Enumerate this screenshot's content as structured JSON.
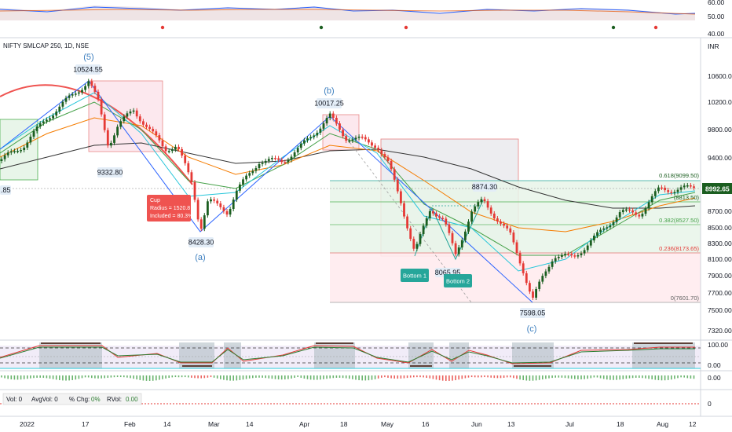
{
  "header": {
    "symbol": "NIFTY SMLCAP 250, 1D, NSE",
    "currency": "INR"
  },
  "colors": {
    "up": "#1b5e20",
    "down": "#e53935",
    "blue": "#2962ff",
    "wave": "#3d7fbf",
    "green_zone": "#c8e6c9",
    "red_zone": "#ffcdd2",
    "gray_box": "#e8e8ec",
    "pink_box": "#fde2e4"
  },
  "top_indicator": {
    "labels": [
      "60.00",
      "50.00",
      "40.00"
    ]
  },
  "chart_data": {
    "type": "candlestick",
    "title": "NIFTY SMLCAP 250, 1D, NSE",
    "ylabel": "INR",
    "y_axis_ticks": [
      "10600.00",
      "10200.00",
      "9800.00",
      "9400.00",
      "8700.00",
      "8500.00",
      "8300.00",
      "8100.00",
      "7900.00",
      "7700.00",
      "7500.00",
      "7320.00"
    ],
    "current_price": "8992.65",
    "x_axis_labels": [
      "2022",
      "17",
      "Feb",
      "14",
      "Mar",
      "14",
      "Apr",
      "18",
      "May",
      "16",
      "Jun",
      "13",
      "Jul",
      "18",
      "Aug",
      "12"
    ],
    "price_labels": {
      "wave5_peak": "10524.55",
      "low_9332": "9332.80",
      "low_8428": "8428.30",
      "wave_b_peak": "10017.25",
      "high_8874": "8874.30",
      "low_8065": "8065.95",
      "low_7598": "7598.05",
      "left_edge": ".85"
    },
    "wave_labels": {
      "wave5": "(5)",
      "wave_a": "(a)",
      "wave_b": "(b)",
      "wave_c": "(c)"
    },
    "cup_annotation": [
      "Cup",
      "Radius = 1520.8",
      "Included = 80.3%"
    ],
    "patterns": {
      "bottom1": "Bottom 1",
      "bottom2": "Bottom 2"
    },
    "fib_levels": [
      {
        "label": "0.618(9099.50)"
      },
      {
        "label": "(8813.50)"
      },
      {
        "label": "0.382(8527.50)"
      },
      {
        "label": "0.236(8173.65)"
      },
      {
        "label": "0(7601.70)"
      }
    ]
  },
  "stoch_panel": {
    "labels": [
      "100.00",
      "0.00"
    ]
  },
  "volume_panel": {
    "label": "0.00",
    "legend": {
      "vol": "Vol: 0",
      "avgvol": "AvgVol: 0",
      "chg_label": "% Chg:",
      "chg_val": "0%",
      "rvol_label": "RVol:",
      "rvol_val": "0.00"
    }
  },
  "bottom_panel": {
    "label": "0"
  }
}
